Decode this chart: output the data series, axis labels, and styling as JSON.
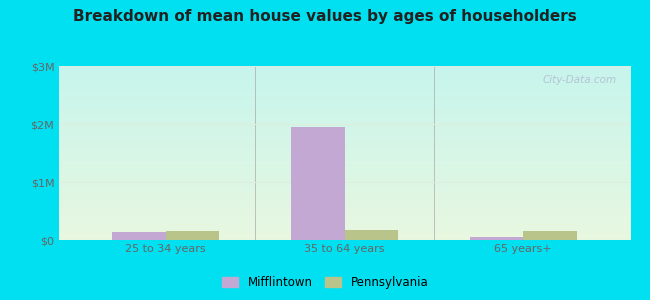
{
  "title": "Breakdown of mean house values by ages of householders",
  "categories": [
    "25 to 34 years",
    "35 to 64 years",
    "65 years+"
  ],
  "mifflintown_values": [
    130000,
    1950000,
    55000
  ],
  "pennsylvania_values": [
    155000,
    175000,
    160000
  ],
  "ylim": [
    0,
    3000000
  ],
  "yticks": [
    0,
    1000000,
    2000000,
    3000000
  ],
  "ytick_labels": [
    "$0",
    "$1M",
    "$2M",
    "$3M"
  ],
  "bar_color_mifflintown": "#c4a8d4",
  "bar_color_pennsylvania": "#b8c48a",
  "legend_labels": [
    "Mifflintown",
    "Pennsylvania"
  ],
  "watermark": "City-Data.com",
  "bar_width": 0.3,
  "outer_bg": "#00e0f0",
  "grid_color": "#ddeedd",
  "title_fontsize": 11,
  "tick_fontsize": 8
}
